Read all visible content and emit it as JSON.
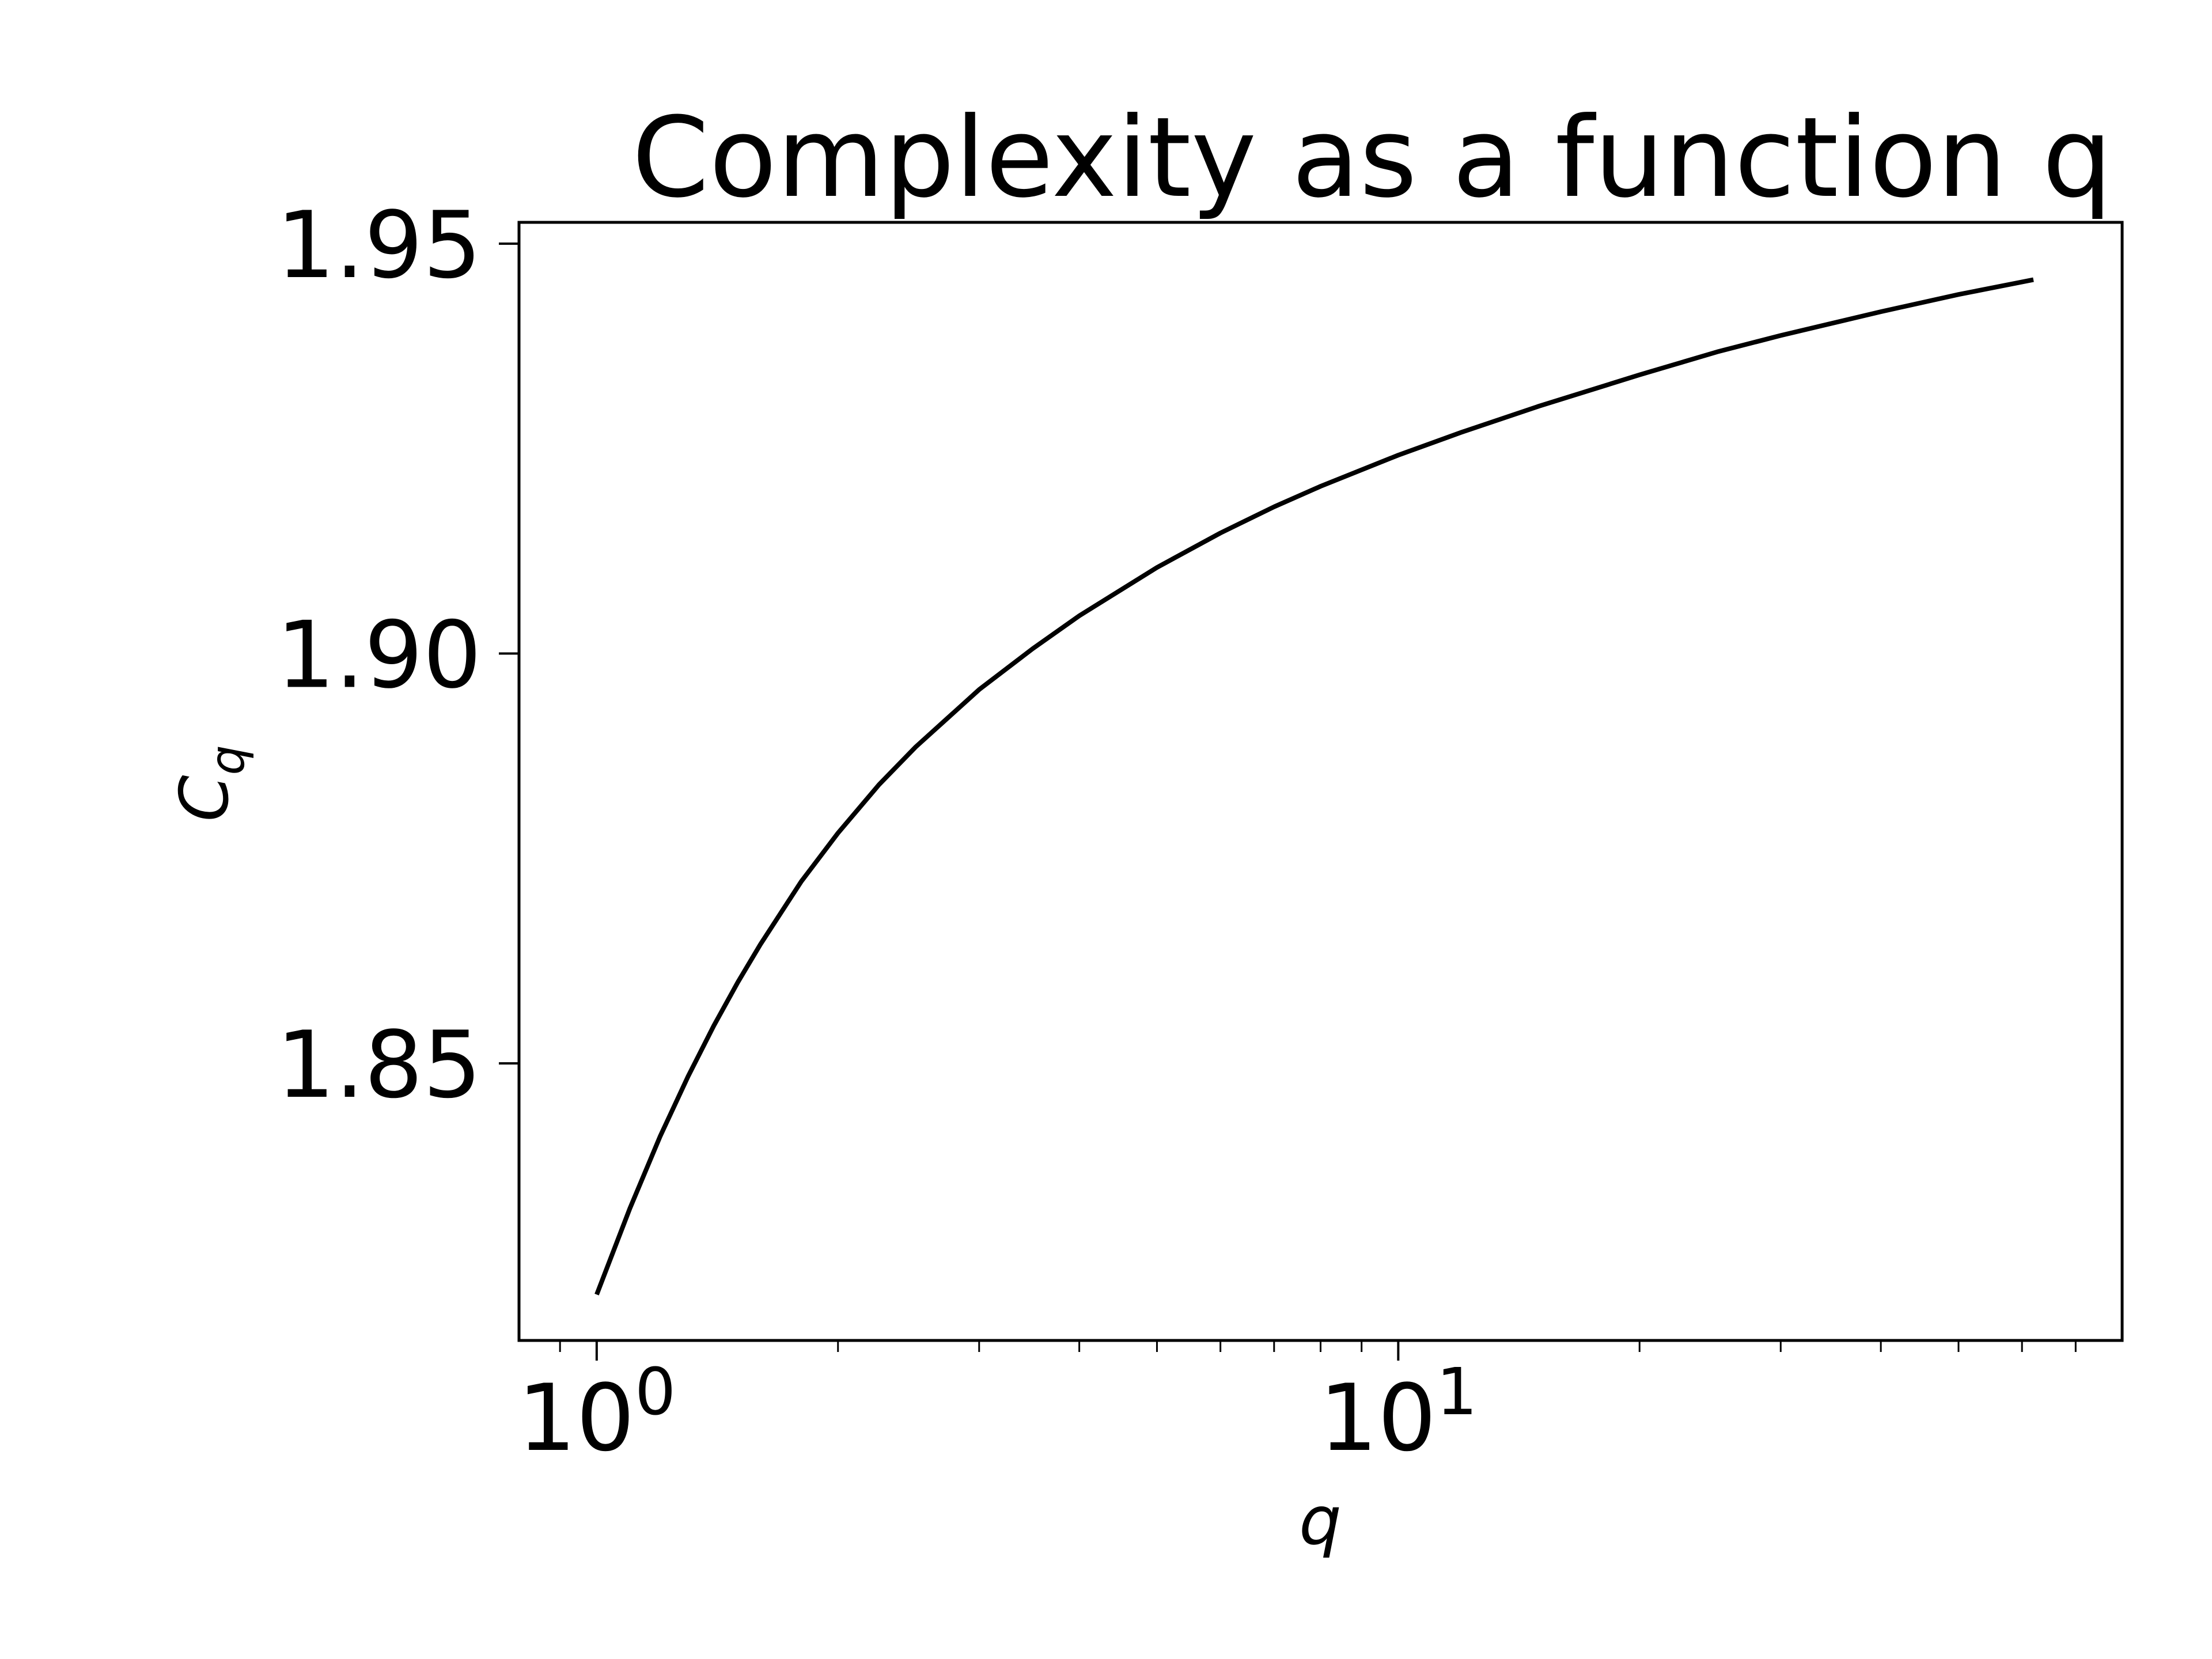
{
  "chart_data": {
    "type": "line",
    "title": "Complexity as a function q",
    "xlabel": "q",
    "ylabel_main": "C",
    "ylabel_sub": "q",
    "x_scale": "log",
    "xlim": [
      0.8,
      80
    ],
    "ylim": [
      1.8162,
      1.9526
    ],
    "grid": false,
    "legend": "none",
    "line_color": "#000000",
    "x_ticks": [
      {
        "value": 1,
        "base": "10",
        "exp": "0"
      },
      {
        "value": 10,
        "base": "10",
        "exp": "1"
      }
    ],
    "y_ticks": [
      {
        "value": 1.85,
        "label": "1.85"
      },
      {
        "value": 1.9,
        "label": "1.90"
      },
      {
        "value": 1.95,
        "label": "1.95"
      }
    ],
    "series": [
      {
        "x": [
          1.0,
          1.1,
          1.2,
          1.3,
          1.4,
          1.5,
          1.6,
          1.8,
          2.0,
          2.25,
          2.5,
          3.0,
          3.5,
          4.0,
          5.0,
          6.0,
          7.0,
          8.0,
          10.0,
          12.0,
          15.0,
          20.0,
          25.0,
          30.0,
          40.0,
          50.0,
          62.0
        ],
        "y": [
          1.8218,
          1.8323,
          1.8411,
          1.8484,
          1.8546,
          1.8599,
          1.8645,
          1.8722,
          1.8781,
          1.884,
          1.8886,
          1.8956,
          1.9006,
          1.9046,
          1.9105,
          1.9147,
          1.9179,
          1.9204,
          1.9242,
          1.927,
          1.9302,
          1.934,
          1.9368,
          1.9388,
          1.9417,
          1.9438,
          1.9456
        ]
      }
    ]
  }
}
